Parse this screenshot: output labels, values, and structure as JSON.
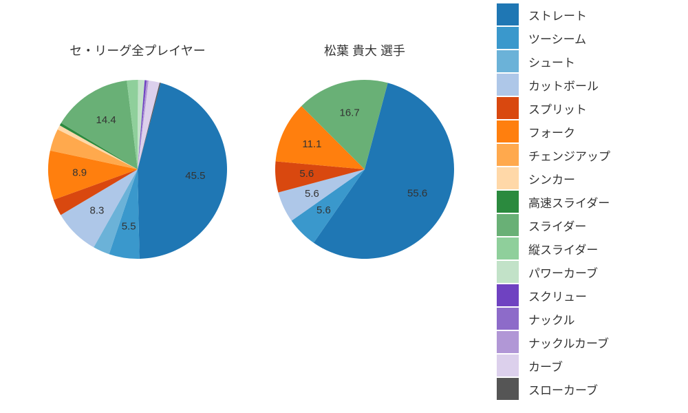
{
  "chart": {
    "type": "pie",
    "background_color": "#ffffff",
    "title_fontsize": 18,
    "label_fontsize": 15,
    "legend_fontsize": 17,
    "text_color": "#333333",
    "pie_radius": 130,
    "label_radius_factor": 0.65,
    "min_label_value": 5.0,
    "pies": [
      {
        "title": "セ・リーグ全プレイヤー",
        "slices": [
          {
            "label": "ストレート",
            "value": 45.5,
            "color": "#1f77b4"
          },
          {
            "label": "ツーシーム",
            "value": 5.5,
            "color": "#3a98cc"
          },
          {
            "label": "シュート",
            "value": 3.0,
            "color": "#6bb2d8"
          },
          {
            "label": "カットボール",
            "value": 8.3,
            "color": "#aec7e8"
          },
          {
            "label": "スプリット",
            "value": 3.0,
            "color": "#d9480f"
          },
          {
            "label": "フォーク",
            "value": 8.9,
            "color": "#ff7f0e"
          },
          {
            "label": "チェンジアップ",
            "value": 4.0,
            "color": "#ffa94d"
          },
          {
            "label": "シンカー",
            "value": 0.8,
            "color": "#ffd8a8"
          },
          {
            "label": "高速スライダー",
            "value": 0.5,
            "color": "#2b8a3e"
          },
          {
            "label": "スライダー",
            "value": 14.4,
            "color": "#69b076"
          },
          {
            "label": "縦スライダー",
            "value": 2.0,
            "color": "#8fcf9b"
          },
          {
            "label": "パワーカーブ",
            "value": 1.2,
            "color": "#c2e2c8"
          },
          {
            "label": "スクリュー",
            "value": 0.3,
            "color": "#6f42c1"
          },
          {
            "label": "ナックル",
            "value": 0.1,
            "color": "#8d6bc9"
          },
          {
            "label": "ナックルカーブ",
            "value": 0.3,
            "color": "#b197d6"
          },
          {
            "label": "カーブ",
            "value": 2.0,
            "color": "#dcd0ec"
          },
          {
            "label": "スローカーブ",
            "value": 0.2,
            "color": "#555555"
          }
        ]
      },
      {
        "title": "松葉 貴大  選手",
        "slices": [
          {
            "label": "ストレート",
            "value": 55.6,
            "color": "#1f77b4"
          },
          {
            "label": "ツーシーム",
            "value": 5.6,
            "color": "#3a98cc"
          },
          {
            "label": "カットボール",
            "value": 5.6,
            "color": "#aec7e8"
          },
          {
            "label": "スプリット",
            "value": 5.6,
            "color": "#d9480f"
          },
          {
            "label": "フォーク",
            "value": 11.1,
            "color": "#ff7f0e"
          },
          {
            "label": "スライダー",
            "value": 16.7,
            "color": "#69b076"
          }
        ]
      }
    ],
    "legend": [
      {
        "label": "ストレート",
        "color": "#1f77b4"
      },
      {
        "label": "ツーシーム",
        "color": "#3a98cc"
      },
      {
        "label": "シュート",
        "color": "#6bb2d8"
      },
      {
        "label": "カットボール",
        "color": "#aec7e8"
      },
      {
        "label": "スプリット",
        "color": "#d9480f"
      },
      {
        "label": "フォーク",
        "color": "#ff7f0e"
      },
      {
        "label": "チェンジアップ",
        "color": "#ffa94d"
      },
      {
        "label": "シンカー",
        "color": "#ffd8a8"
      },
      {
        "label": "高速スライダー",
        "color": "#2b8a3e"
      },
      {
        "label": "スライダー",
        "color": "#69b076"
      },
      {
        "label": "縦スライダー",
        "color": "#8fcf9b"
      },
      {
        "label": "パワーカーブ",
        "color": "#c2e2c8"
      },
      {
        "label": "スクリュー",
        "color": "#6f42c1"
      },
      {
        "label": "ナックル",
        "color": "#8d6bc9"
      },
      {
        "label": "ナックルカーブ",
        "color": "#b197d6"
      },
      {
        "label": "カーブ",
        "color": "#dcd0ec"
      },
      {
        "label": "スローカーブ",
        "color": "#555555"
      }
    ]
  }
}
